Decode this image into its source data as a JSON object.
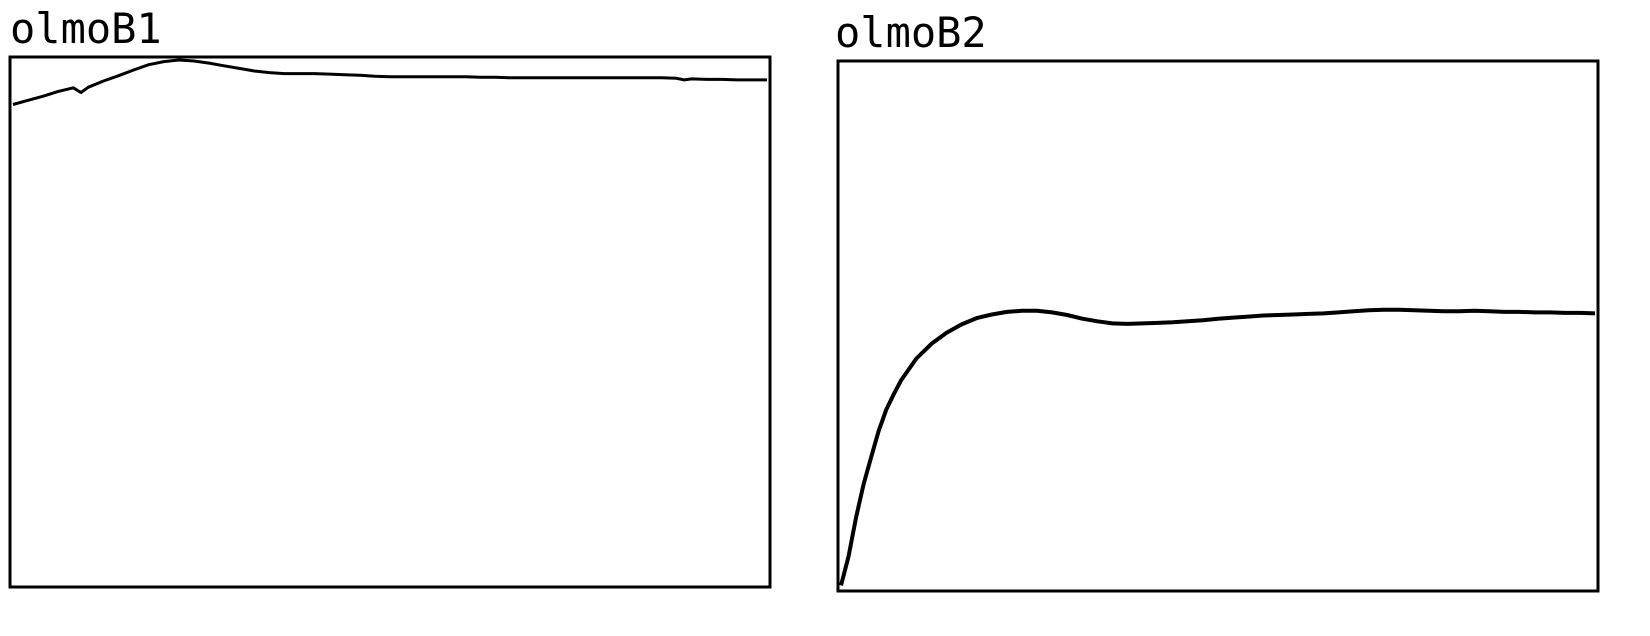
{
  "chart_data": [
    {
      "type": "line",
      "title": "olmoB1",
      "xlabel": "",
      "ylabel": "",
      "grid": false,
      "legend": "none",
      "line_color": "#000000",
      "xlim": [
        0,
        100
      ],
      "ylim": [
        0,
        100
      ],
      "series": [
        {
          "x": [
            0,
            2,
            4,
            6,
            8,
            9,
            10,
            12,
            14,
            16,
            18,
            20,
            22,
            24,
            26,
            28,
            30,
            32,
            34,
            36,
            38,
            40,
            42,
            44,
            46,
            48,
            50,
            52,
            54,
            56,
            58,
            60,
            62,
            64,
            66,
            68,
            70,
            72,
            74,
            76,
            78,
            80,
            82,
            84,
            86,
            88,
            89,
            90,
            92,
            94,
            96,
            98,
            100
          ],
          "y": [
            91.5,
            92.3,
            93.1,
            94.0,
            94.7,
            93.8,
            94.8,
            96.0,
            97.0,
            98.1,
            99.1,
            99.7,
            100.0,
            99.8,
            99.4,
            98.9,
            98.4,
            97.9,
            97.6,
            97.4,
            97.4,
            97.4,
            97.3,
            97.2,
            97.1,
            96.9,
            96.8,
            96.8,
            96.8,
            96.8,
            96.8,
            96.8,
            96.7,
            96.7,
            96.6,
            96.6,
            96.6,
            96.6,
            96.6,
            96.6,
            96.6,
            96.6,
            96.6,
            96.6,
            96.6,
            96.5,
            96.2,
            96.4,
            96.3,
            96.3,
            96.2,
            96.2,
            96.2
          ]
        }
      ]
    },
    {
      "type": "line",
      "title": "olmoB2",
      "xlabel": "",
      "ylabel": "",
      "grid": false,
      "legend": "none",
      "line_color": "#000000",
      "xlim": [
        0,
        100
      ],
      "ylim": [
        0,
        100
      ],
      "series": [
        {
          "x": [
            0,
            1,
            2,
            3,
            4,
            5,
            6,
            7,
            8,
            10,
            12,
            14,
            16,
            18,
            20,
            22,
            24,
            26,
            28,
            30,
            32,
            34,
            36,
            38,
            40,
            42,
            44,
            46,
            48,
            50,
            52,
            54,
            56,
            58,
            60,
            62,
            64,
            66,
            68,
            70,
            72,
            74,
            76,
            78,
            80,
            82,
            84,
            86,
            88,
            90,
            92,
            94,
            96,
            98,
            100
          ],
          "y": [
            0.5,
            6.0,
            13.5,
            19.8,
            25.0,
            30.0,
            34.0,
            37.0,
            39.7,
            43.8,
            46.6,
            48.7,
            50.3,
            51.5,
            52.2,
            52.7,
            52.9,
            52.9,
            52.6,
            52.1,
            51.4,
            50.9,
            50.5,
            50.4,
            50.5,
            50.6,
            50.7,
            50.9,
            51.1,
            51.4,
            51.6,
            51.8,
            52.0,
            52.1,
            52.2,
            52.3,
            52.4,
            52.6,
            52.8,
            53.0,
            53.1,
            53.1,
            53.0,
            52.9,
            52.8,
            52.8,
            52.9,
            52.8,
            52.7,
            52.7,
            52.6,
            52.6,
            52.5,
            52.5,
            52.4
          ]
        }
      ]
    }
  ]
}
